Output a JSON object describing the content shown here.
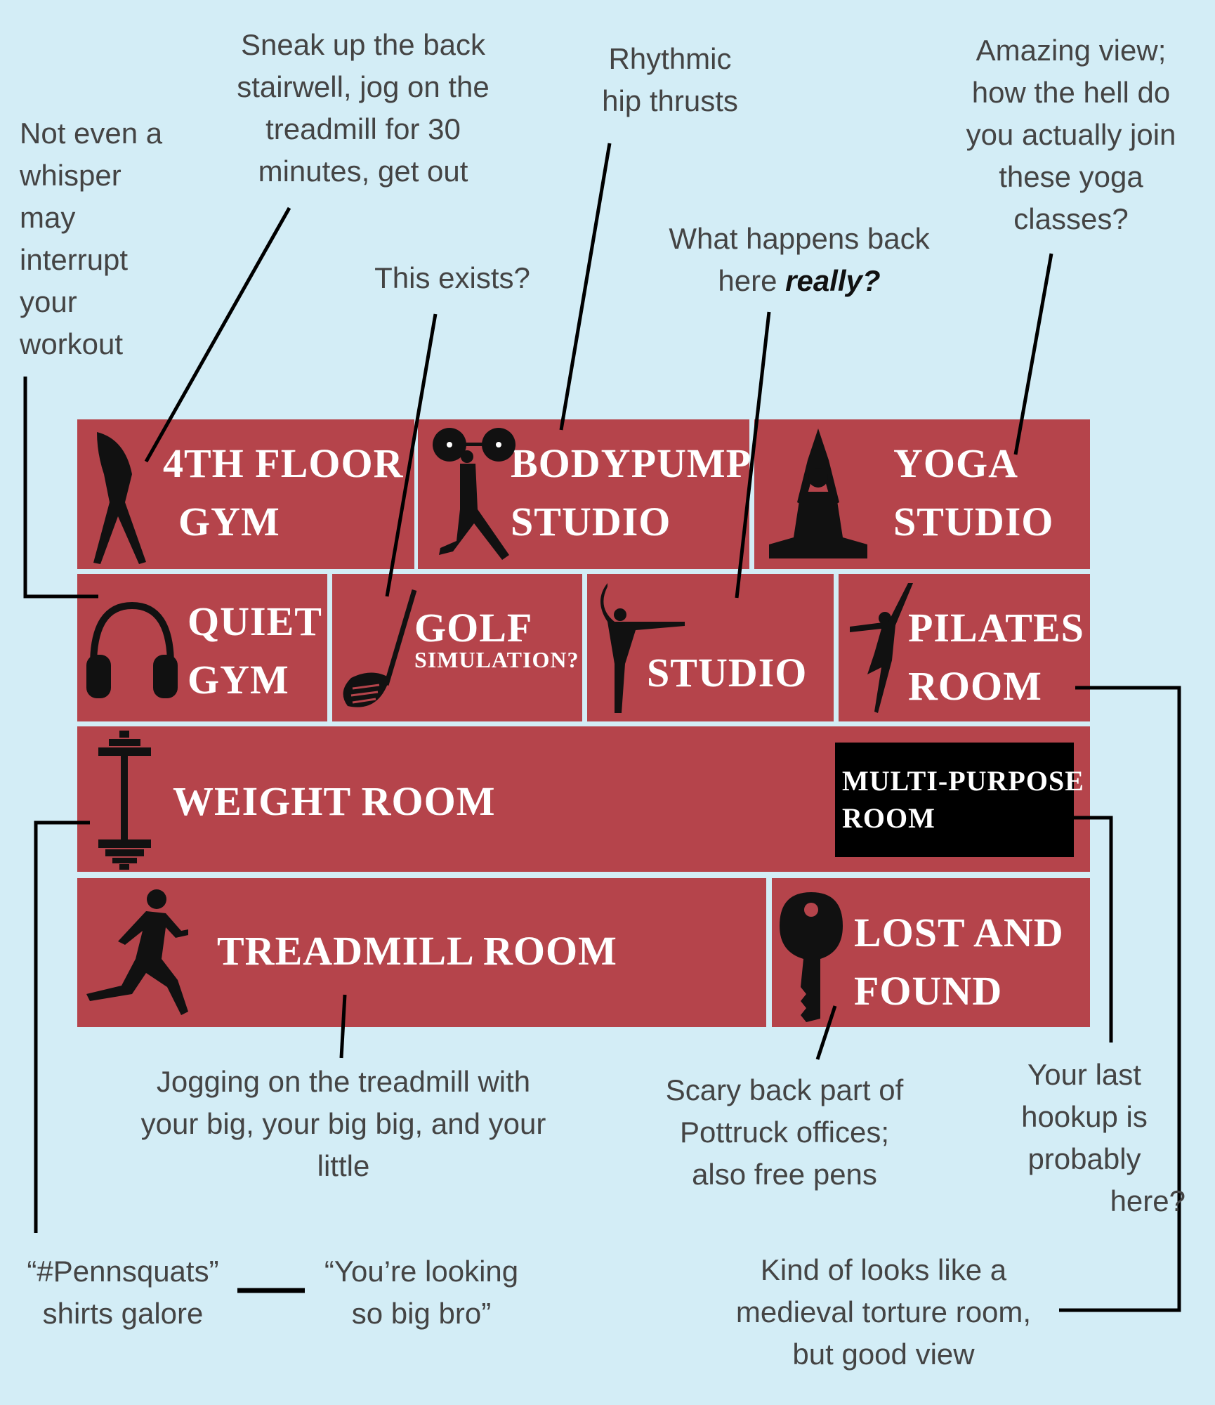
{
  "colors": {
    "background": "#d3edf6",
    "room": "#b5444b",
    "highlight": "#000000",
    "lines": "#000000"
  },
  "rooms": {
    "fourth_floor_gym": {
      "lines": [
        "4TH FLOOR",
        "GYM"
      ],
      "icon": "stretching-person-icon"
    },
    "bodypump_studio": {
      "lines": [
        "BODYPUMP",
        "STUDIO"
      ],
      "icon": "weightlifter-icon"
    },
    "yoga_studio": {
      "lines": [
        "YOGA",
        "STUDIO"
      ],
      "icon": "meditation-icon"
    },
    "quiet_gym": {
      "lines": [
        "QUIET",
        "GYM"
      ],
      "icon": "headphones-icon"
    },
    "golf_simulation": {
      "lines": [
        "GOLF",
        "SIMULATION?"
      ],
      "icon": "golf-club-icon"
    },
    "studio": {
      "lines": [
        "STUDIO"
      ],
      "icon": "dancer-icon"
    },
    "pilates_room": {
      "lines": [
        "PILATES",
        "ROOM"
      ],
      "icon": "ballerina-icon"
    },
    "weight_room": {
      "lines": [
        "WEIGHT ROOM"
      ],
      "icon": "dumbbell-icon"
    },
    "multi_purpose_room": {
      "lines": [
        "MULTI-PURPOSE",
        "ROOM"
      ]
    },
    "treadmill_room": {
      "lines": [
        "TREADMILL ROOM"
      ],
      "icon": "runner-icon"
    },
    "lost_and_found": {
      "lines": [
        "LOST AND",
        "FOUND"
      ],
      "icon": "key-icon"
    }
  },
  "notes": {
    "quiet": [
      "Not even a",
      "whisper",
      "may",
      "interrupt",
      "your",
      "workout"
    ],
    "sneak": [
      "Sneak up the back",
      "stairwell, jog on the",
      "treadmill for 30",
      "minutes, get out"
    ],
    "rhythmic": [
      "Rhythmic",
      "hip thrusts"
    ],
    "amazing": [
      "Amazing view;",
      "how the hell do",
      "you actually join",
      "these yoga",
      "classes?"
    ],
    "exists": [
      "This exists?"
    ],
    "what_happens": {
      "line1": "What happens back",
      "line2_plain": "here ",
      "line2_emph": "really?"
    },
    "jogging": [
      "Jogging on the treadmill with",
      "your big, your big big, and your",
      "little"
    ],
    "scary": [
      "Scary back part of",
      "Pottruck offices;",
      "also free pens"
    ],
    "hookup": [
      "Your last",
      "hookup is",
      "probably",
      "here?"
    ],
    "pennsquats": [
      "“#Pennsquats”",
      "shirts galore"
    ],
    "big_bro": [
      "“You’re looking",
      "so big bro”"
    ],
    "torture": [
      "Kind of looks like a",
      "medieval torture room,",
      "but good view"
    ]
  }
}
